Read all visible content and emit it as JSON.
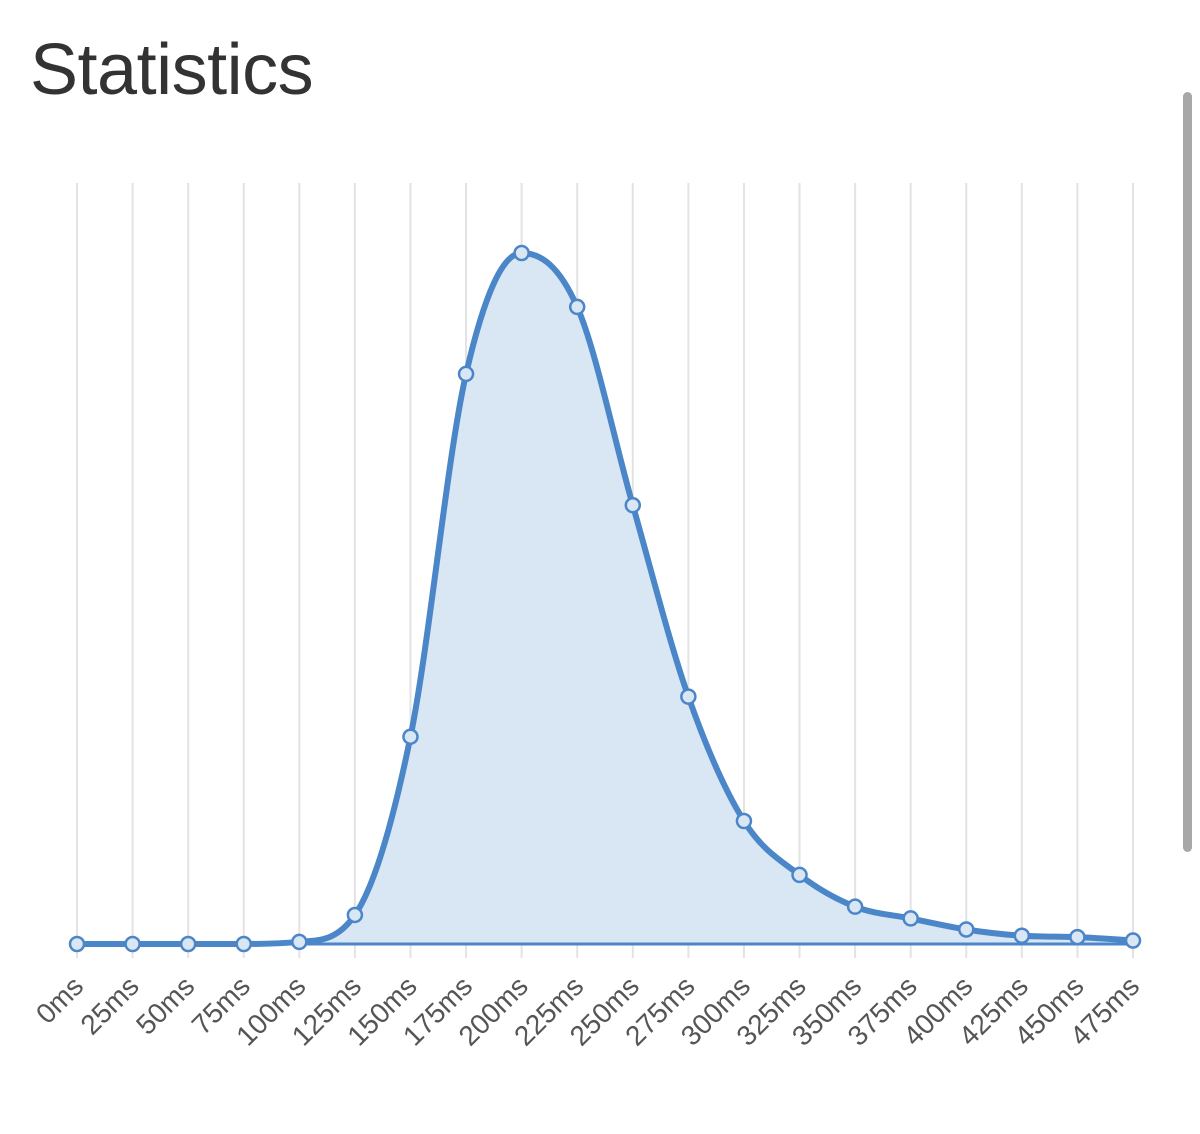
{
  "page": {
    "title": "Statistics"
  },
  "colors": {
    "line": "#4a86c8",
    "fill": "#d9e6f4",
    "grid": "#e3e3e3",
    "tick_text": "#555555",
    "title": "#333333",
    "scrollbar": "#a8a8a8"
  },
  "chart_data": {
    "type": "area",
    "title": "",
    "xlabel": "",
    "ylabel": "",
    "grid": true,
    "legend": "none",
    "categories": [
      "0ms",
      "25ms",
      "50ms",
      "75ms",
      "100ms",
      "125ms",
      "150ms",
      "175ms",
      "200ms",
      "225ms",
      "250ms",
      "275ms",
      "300ms",
      "325ms",
      "350ms",
      "375ms",
      "400ms",
      "425ms",
      "450ms",
      "475ms"
    ],
    "ylim": [
      0,
      1100
    ],
    "series": [
      {
        "values": [
          0,
          0,
          0,
          0,
          3,
          42,
          300,
          825,
          1000,
          922,
          635,
          358,
          178,
          100,
          54,
          37,
          21,
          12,
          10,
          5
        ]
      }
    ]
  }
}
